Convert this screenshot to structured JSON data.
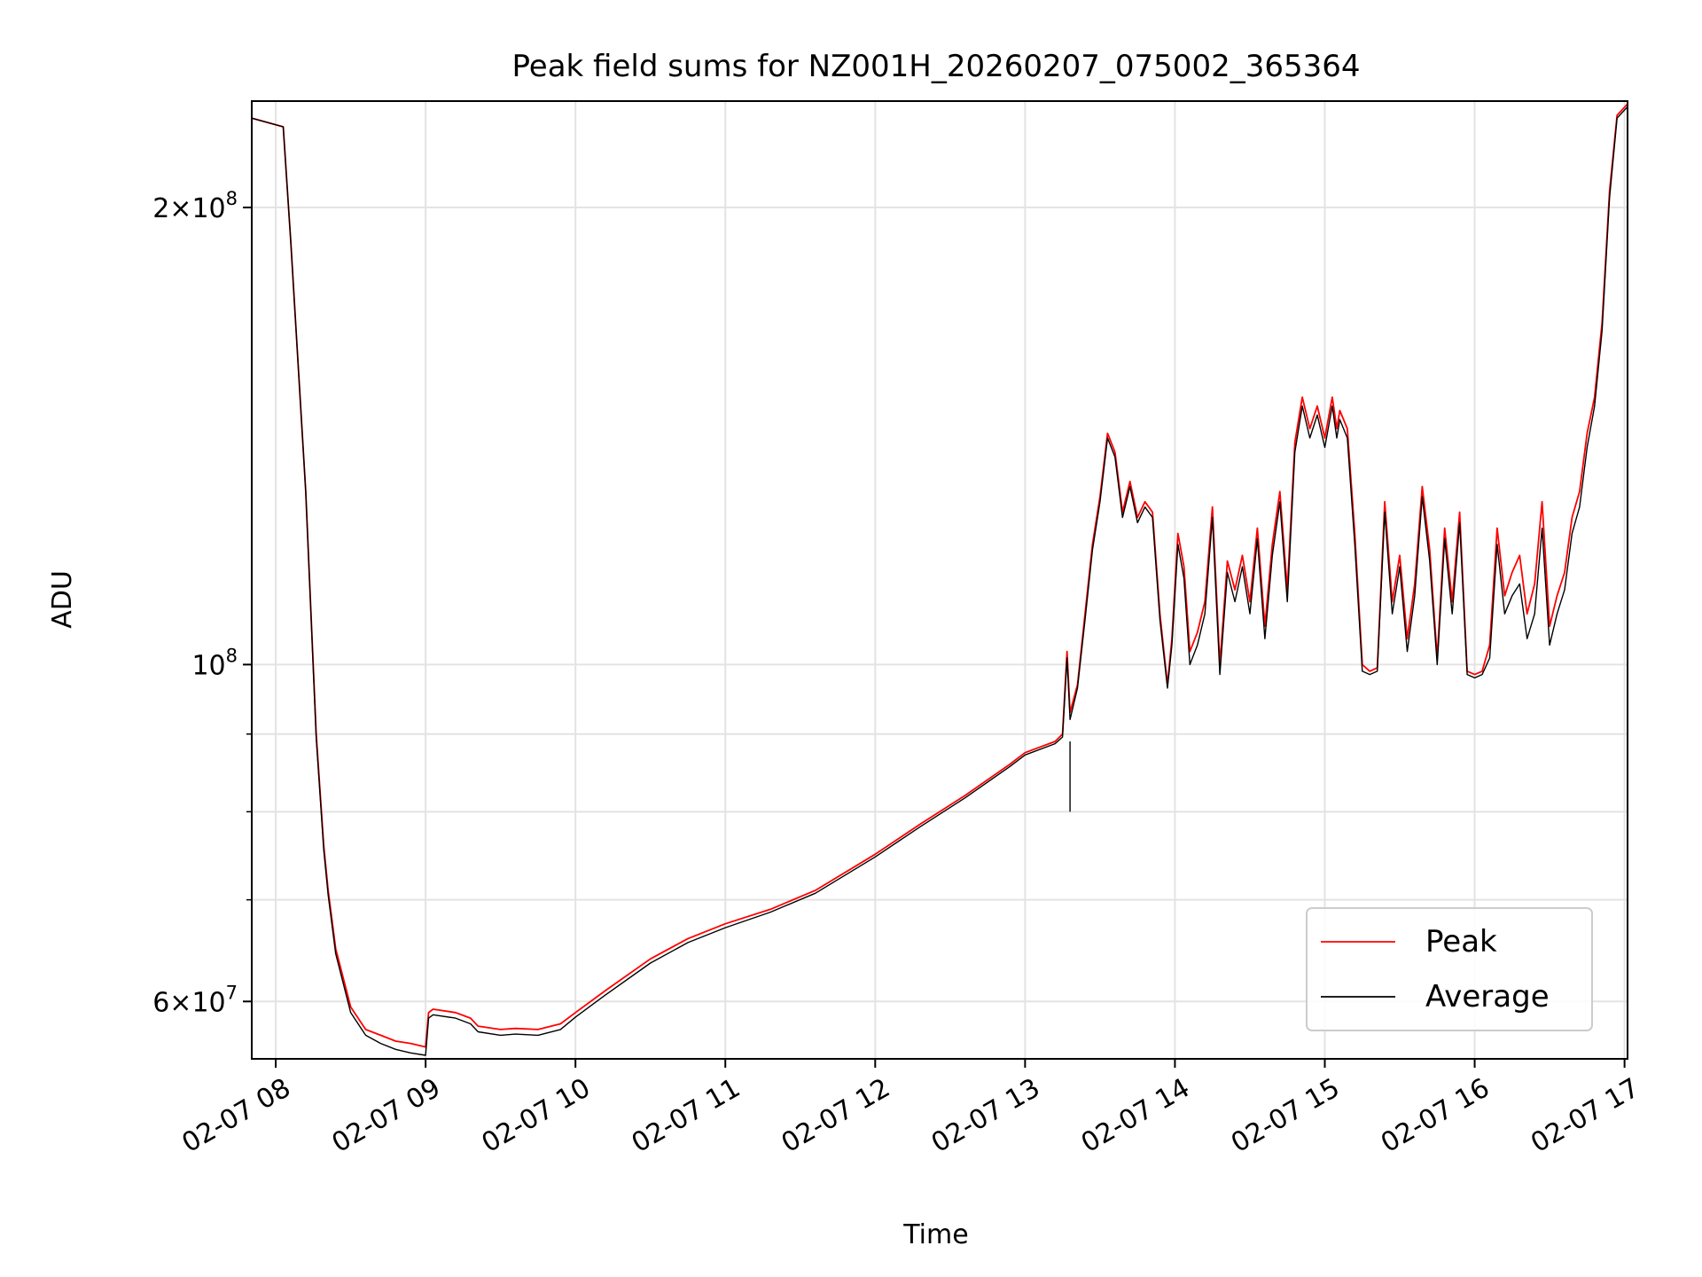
{
  "chart_data": {
    "type": "line",
    "title": "Peak field sums for NZ001H_20260207_075002_365364",
    "xlabel": "Time",
    "ylabel": "ADU",
    "x_unit": "hours since 02-07 00:00",
    "xlim": [
      7.84,
      17.02
    ],
    "ylim": [
      55000000,
      235000000
    ],
    "yscale": "log",
    "grid": true,
    "legend_position": "lower right",
    "x_ticks": [
      {
        "value": 8,
        "label": "02-07 08"
      },
      {
        "value": 9,
        "label": "02-07 09"
      },
      {
        "value": 10,
        "label": "02-07 10"
      },
      {
        "value": 11,
        "label": "02-07 11"
      },
      {
        "value": 12,
        "label": "02-07 12"
      },
      {
        "value": 13,
        "label": "02-07 13"
      },
      {
        "value": 14,
        "label": "02-07 14"
      },
      {
        "value": 15,
        "label": "02-07 15"
      },
      {
        "value": 16,
        "label": "02-07 16"
      },
      {
        "value": 17,
        "label": "02-07 17"
      }
    ],
    "y_major_ticks": [
      {
        "value": 60000000,
        "mantissa": "6",
        "base": "10",
        "exponent": "7"
      },
      {
        "value": 100000000,
        "mantissa": "",
        "base": "10",
        "exponent": "8"
      },
      {
        "value": 200000000,
        "mantissa": "2",
        "base": "10",
        "exponent": "8"
      }
    ],
    "y_minor_ticks": [
      70000000,
      80000000,
      90000000
    ],
    "times_symbol": "×",
    "series": [
      {
        "name": "Peak",
        "color": "#ff0000",
        "x": [
          7.84,
          8.05,
          8.1,
          8.2,
          8.27,
          8.32,
          8.35,
          8.4,
          8.5,
          8.6,
          8.7,
          8.8,
          8.9,
          9.0,
          9.02,
          9.05,
          9.2,
          9.3,
          9.35,
          9.5,
          9.6,
          9.75,
          9.9,
          10.0,
          10.2,
          10.5,
          10.75,
          11.0,
          11.3,
          11.6,
          12.0,
          12.3,
          12.6,
          12.9,
          13.0,
          13.2,
          13.25,
          13.28,
          13.3,
          13.35,
          13.4,
          13.45,
          13.5,
          13.55,
          13.6,
          13.65,
          13.7,
          13.75,
          13.8,
          13.85,
          13.9,
          13.95,
          13.98,
          14.02,
          14.06,
          14.1,
          14.15,
          14.2,
          14.25,
          14.3,
          14.35,
          14.4,
          14.45,
          14.5,
          14.55,
          14.6,
          14.65,
          14.7,
          14.75,
          14.8,
          14.85,
          14.9,
          14.95,
          15.0,
          15.05,
          15.08,
          15.1,
          15.15,
          15.2,
          15.25,
          15.3,
          15.35,
          15.4,
          15.45,
          15.5,
          15.55,
          15.6,
          15.65,
          15.7,
          15.75,
          15.8,
          15.85,
          15.9,
          15.95,
          16.0,
          16.05,
          16.1,
          16.15,
          16.2,
          16.25,
          16.3,
          16.35,
          16.4,
          16.45,
          16.5,
          16.55,
          16.6,
          16.65,
          16.7,
          16.75,
          16.8,
          16.85,
          16.9,
          16.95,
          17.02
        ],
        "y": [
          229000000,
          226000000,
          190000000,
          130000000,
          90000000,
          76000000,
          71000000,
          65000000,
          59500000,
          57500000,
          57000000,
          56500000,
          56300000,
          56000000,
          59000000,
          59300000,
          59000000,
          58500000,
          57800000,
          57500000,
          57600000,
          57500000,
          58000000,
          59000000,
          61000000,
          64000000,
          66000000,
          67500000,
          69000000,
          71000000,
          75000000,
          78500000,
          82000000,
          86000000,
          87500000,
          89000000,
          90000000,
          102000000,
          93000000,
          97000000,
          108000000,
          120000000,
          129000000,
          142000000,
          138000000,
          126000000,
          132000000,
          125000000,
          128000000,
          126000000,
          108000000,
          97000000,
          104000000,
          122000000,
          116000000,
          102000000,
          105000000,
          110000000,
          127000000,
          100000000,
          117000000,
          112000000,
          118000000,
          110000000,
          123000000,
          106000000,
          120000000,
          130000000,
          112000000,
          140000000,
          150000000,
          143000000,
          148000000,
          141000000,
          150000000,
          143000000,
          147000000,
          143000000,
          122000000,
          100000000,
          99000000,
          99500000,
          128000000,
          110000000,
          118000000,
          104000000,
          113000000,
          131000000,
          119000000,
          101000000,
          123000000,
          110000000,
          126000000,
          99000000,
          98500000,
          99000000,
          103000000,
          123000000,
          111000000,
          115000000,
          118000000,
          108000000,
          113000000,
          128000000,
          106000000,
          111000000,
          115000000,
          125000000,
          130000000,
          142000000,
          150000000,
          168000000,
          205000000,
          230000000,
          234000000
        ]
      },
      {
        "name": "Average",
        "color": "#000000",
        "x": [
          7.84,
          8.05,
          8.1,
          8.2,
          8.27,
          8.32,
          8.35,
          8.4,
          8.5,
          8.6,
          8.7,
          8.8,
          8.9,
          9.0,
          9.02,
          9.05,
          9.2,
          9.3,
          9.35,
          9.5,
          9.6,
          9.75,
          9.9,
          10.0,
          10.2,
          10.5,
          10.75,
          11.0,
          11.3,
          11.6,
          12.0,
          12.3,
          12.6,
          12.9,
          13.0,
          13.2,
          13.25,
          13.28,
          13.3,
          13.35,
          13.4,
          13.45,
          13.5,
          13.55,
          13.6,
          13.65,
          13.7,
          13.75,
          13.8,
          13.85,
          13.9,
          13.95,
          13.98,
          14.02,
          14.06,
          14.1,
          14.15,
          14.2,
          14.25,
          14.3,
          14.35,
          14.4,
          14.45,
          14.5,
          14.55,
          14.6,
          14.65,
          14.7,
          14.75,
          14.8,
          14.85,
          14.9,
          14.95,
          15.0,
          15.05,
          15.08,
          15.1,
          15.15,
          15.2,
          15.25,
          15.3,
          15.35,
          15.4,
          15.45,
          15.5,
          15.55,
          15.6,
          15.65,
          15.7,
          15.75,
          15.8,
          15.85,
          15.9,
          15.95,
          16.0,
          16.05,
          16.1,
          16.15,
          16.2,
          16.25,
          16.3,
          16.35,
          16.4,
          16.45,
          16.5,
          16.55,
          16.6,
          16.65,
          16.7,
          16.75,
          16.8,
          16.85,
          16.9,
          16.95,
          17.02
        ],
        "y": [
          229000000,
          226000000,
          190000000,
          130000000,
          89500000,
          75500000,
          70500000,
          64500000,
          59000000,
          57000000,
          56300000,
          55800000,
          55500000,
          55300000,
          58500000,
          58800000,
          58500000,
          58000000,
          57300000,
          57000000,
          57100000,
          57000000,
          57500000,
          58600000,
          60600000,
          63600000,
          65600000,
          67100000,
          68700000,
          70700000,
          74700000,
          78200000,
          81700000,
          85700000,
          87200000,
          88700000,
          89600000,
          101000000,
          92000000,
          96500000,
          107000000,
          119000000,
          128000000,
          141000000,
          137000000,
          125000000,
          131000000,
          124000000,
          127000000,
          125000000,
          107000000,
          96500000,
          103000000,
          120000000,
          114000000,
          100000000,
          103000000,
          108000000,
          125000000,
          98500000,
          115000000,
          110000000,
          116000000,
          108000000,
          121000000,
          104000000,
          118000000,
          128000000,
          110000000,
          138000000,
          148000000,
          141000000,
          146000000,
          139000000,
          148000000,
          141000000,
          145000000,
          141000000,
          120000000,
          99000000,
          98500000,
          99000000,
          126000000,
          108000000,
          116000000,
          102000000,
          111000000,
          129000000,
          117000000,
          100000000,
          121000000,
          108000000,
          124000000,
          98500000,
          98000000,
          98500000,
          101000000,
          120000000,
          108000000,
          111000000,
          113000000,
          104000000,
          108000000,
          123000000,
          103000000,
          108000000,
          112000000,
          122000000,
          127000000,
          139000000,
          148000000,
          166000000,
          203000000,
          229000000,
          233000000
        ]
      }
    ],
    "annotations": [
      {
        "x": 13.3,
        "y": 80000000,
        "text": "",
        "note": "single downward spike in Average"
      }
    ]
  }
}
